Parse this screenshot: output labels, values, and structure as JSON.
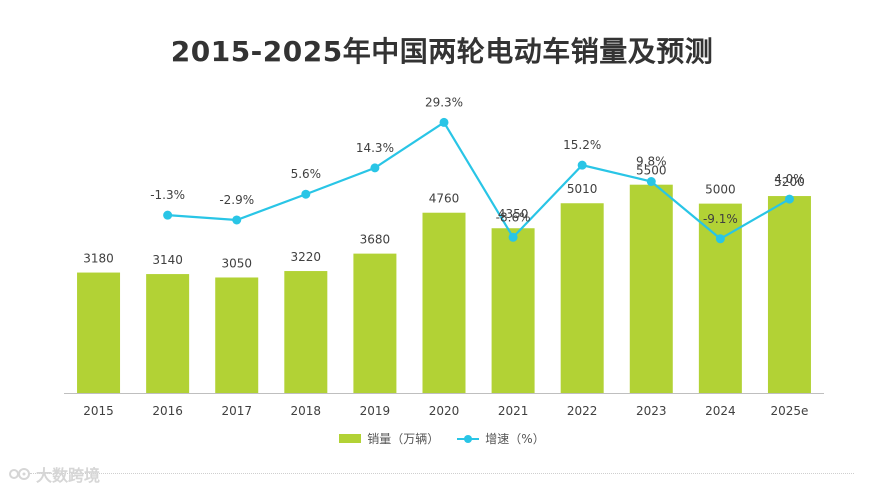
{
  "chart_data": {
    "type": "bar+line",
    "title": "2015-2025年中国两轮电动车销量及预测",
    "categories": [
      "2015",
      "2016",
      "2017",
      "2018",
      "2019",
      "2020",
      "2021",
      "2022",
      "2023",
      "2024",
      "2025e"
    ],
    "series": [
      {
        "name": "销量（万辆）",
        "type": "bar",
        "values": [
          3180,
          3140,
          3050,
          3220,
          3680,
          4760,
          4350,
          5010,
          5500,
          5000,
          5200
        ],
        "labels": [
          "3180",
          "3140",
          "3050",
          "3220",
          "3680",
          "4760",
          "4350",
          "5010",
          "5500",
          "5000",
          "5200"
        ],
        "color": "#b2d235"
      },
      {
        "name": "增速（%）",
        "type": "line",
        "values": [
          null,
          -1.3,
          -2.9,
          5.6,
          14.3,
          29.3,
          -8.6,
          15.2,
          9.8,
          -9.1,
          4.0
        ],
        "labels": [
          "",
          "-1.3%",
          "-2.9%",
          "5.6%",
          "14.3%",
          "29.3%",
          "-8.6%",
          "15.2%",
          "9.8%",
          "-9.1%",
          "4.0%"
        ],
        "color": "#29c5e6"
      }
    ],
    "bar_ylim": [
      0,
      8000
    ],
    "line_ylim": [
      -60,
      40
    ],
    "legend_position": "bottom"
  },
  "watermark": {
    "text": "大数跨境"
  }
}
